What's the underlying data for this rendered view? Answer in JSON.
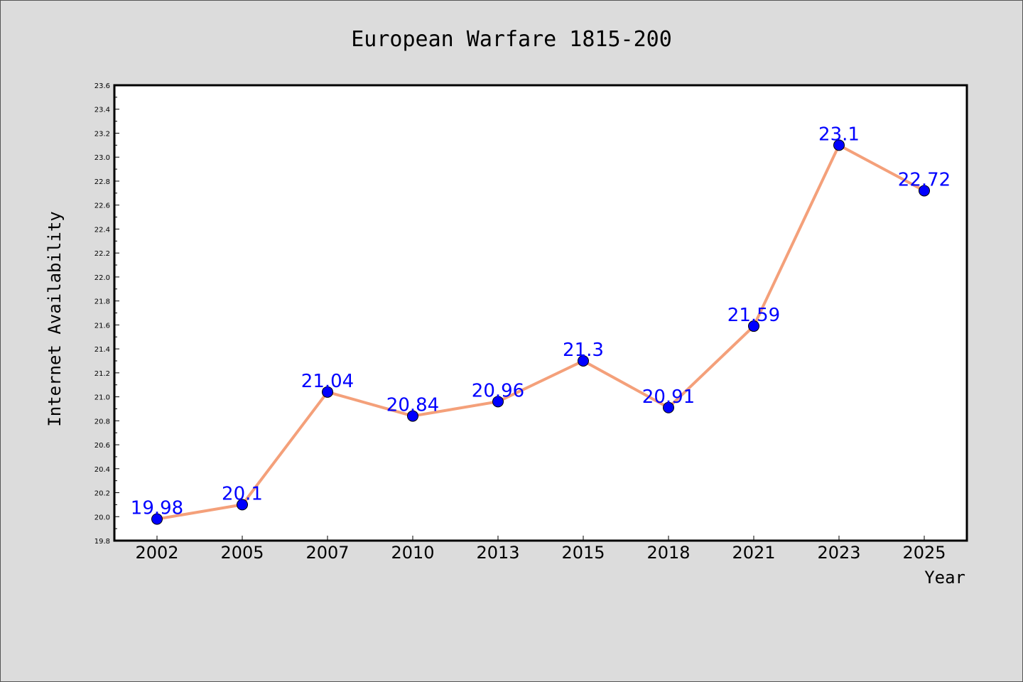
{
  "chart_data": {
    "type": "line",
    "title": "European Warfare 1815-200",
    "xlabel": "Year",
    "ylabel": "Internet Availability",
    "categories": [
      "2002",
      "2005",
      "2007",
      "2010",
      "2013",
      "2015",
      "2018",
      "2021",
      "2023",
      "2025"
    ],
    "series": [
      {
        "values": [
          19.98,
          20.1,
          21.04,
          20.84,
          20.96,
          21.3,
          20.91,
          21.59,
          23.1,
          22.72
        ],
        "data_labels": [
          "19.98",
          "20.1",
          "21.04",
          "20.84",
          "20.96",
          "21.3",
          "20.91",
          "21.59",
          "23.1",
          "22.72"
        ]
      }
    ],
    "ylim": [
      19.8,
      23.6
    ],
    "yticks": [
      "19.8",
      "20.0",
      "20.2",
      "20.4",
      "20.6",
      "20.8",
      "21.0",
      "21.2",
      "21.4",
      "21.6",
      "21.8",
      "22.0",
      "22.2",
      "22.4",
      "22.6",
      "22.8",
      "23.0",
      "23.2",
      "23.4",
      "23.6"
    ],
    "grid": false,
    "colors": {
      "line": "#f4a07a",
      "marker": "#0000ff",
      "data_label": "#0000ff",
      "plot_background": "#ffffff",
      "figure_background": "#dcdcdc"
    }
  }
}
